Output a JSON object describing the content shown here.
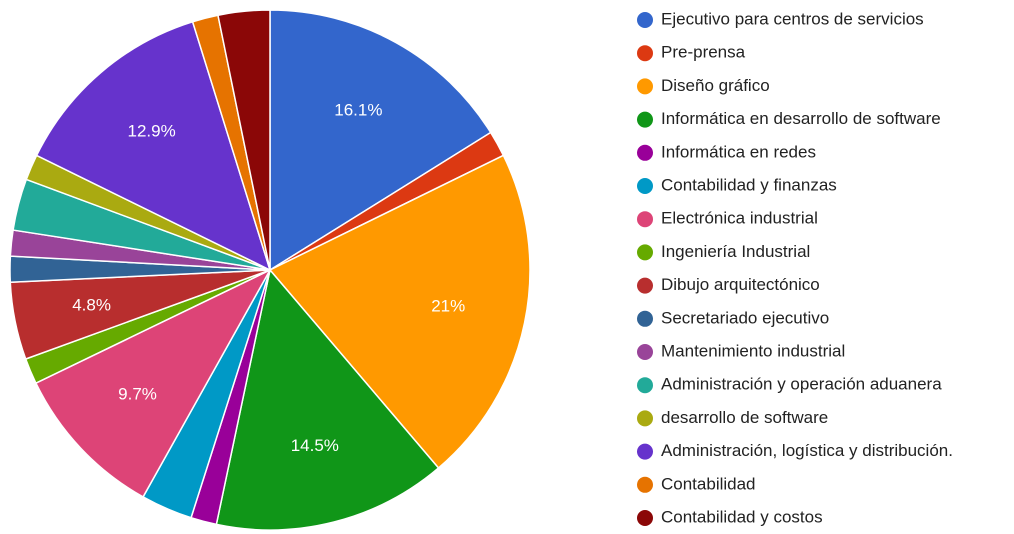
{
  "chart_data": {
    "type": "pie",
    "categories": [
      "Ejecutivo para centros de servicios",
      "Pre-prensa",
      "Diseño gráfico",
      "Informática en desarrollo de software",
      "Informática en redes",
      "Contabilidad y finanzas",
      "Electrónica industrial",
      "Ingeniería Industrial",
      "Dibujo arquitectónico",
      "Secretariado ejecutivo",
      "Mantenimiento industrial",
      "Administración y operación aduanera",
      "desarrollo de software",
      "Administración, logística y distribución.",
      "Contabilidad",
      "Contabilidad y costos"
    ],
    "values": [
      16.1,
      1.6,
      21,
      14.5,
      1.6,
      3.2,
      9.7,
      1.6,
      4.8,
      1.6,
      1.6,
      3.2,
      1.6,
      12.9,
      1.6,
      3.2
    ],
    "value_labels": [
      "16.1%",
      null,
      "21%",
      "14.5%",
      null,
      null,
      "9.7%",
      null,
      "4.8%",
      null,
      null,
      null,
      null,
      "12.9%",
      null,
      null
    ],
    "colors": [
      "#3366cc",
      "#dc3912",
      "#ff9900",
      "#109618",
      "#990099",
      "#0099c6",
      "#dd4477",
      "#66aa00",
      "#b82e2e",
      "#316395",
      "#994499",
      "#22aa99",
      "#aaaa11",
      "#6633cc",
      "#e67300",
      "#8b0707"
    ],
    "legend": "right"
  }
}
